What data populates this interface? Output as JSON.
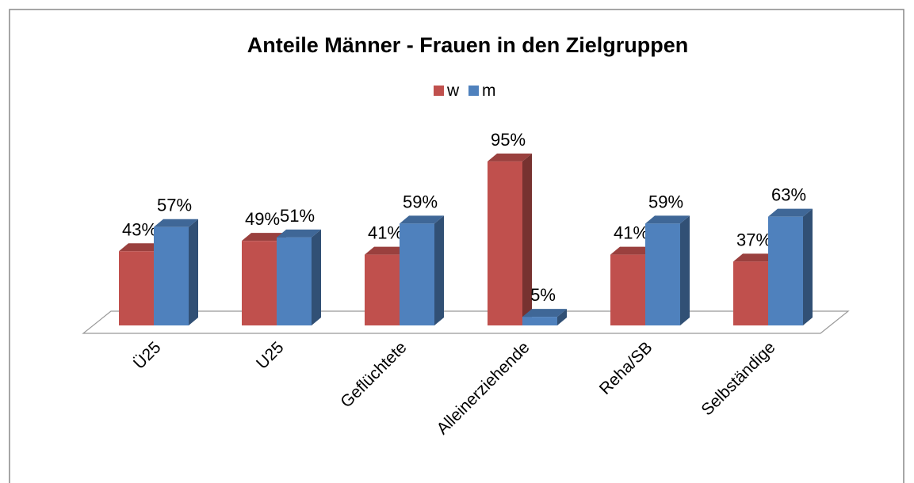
{
  "chart_data": {
    "type": "bar3d",
    "title": "Anteile Männer - Frauen in den Zielgruppen",
    "categories": [
      "Ü25",
      "U25",
      "Geflüchtete",
      "Alleinerziehende",
      "Reha/SB",
      "Selbständige"
    ],
    "series": [
      {
        "name": "w",
        "color": "#c0504d",
        "values": [
          43,
          49,
          41,
          95,
          41,
          37
        ],
        "value_labels": [
          "43%",
          "49%",
          "41%",
          "95%",
          "41%",
          "37%"
        ]
      },
      {
        "name": "m",
        "color": "#4f81bd",
        "values": [
          57,
          51,
          59,
          5,
          59,
          63
        ],
        "value_labels": [
          "57%",
          "51%",
          "59%",
          "5%",
          "59%",
          "63%"
        ]
      }
    ],
    "legend": "top"
  }
}
